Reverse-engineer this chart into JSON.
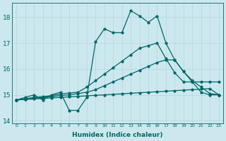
{
  "xlabel": "Humidex (Indice chaleur)",
  "background_color": "#cce8ee",
  "grid_color": "#b8d8e0",
  "line_color": "#006666",
  "xlim": [
    -0.5,
    23.5
  ],
  "ylim": [
    13.9,
    18.55
  ],
  "yticks": [
    14,
    15,
    16,
    17,
    18
  ],
  "xticks": [
    0,
    1,
    2,
    3,
    4,
    5,
    6,
    7,
    8,
    9,
    10,
    11,
    12,
    13,
    14,
    15,
    16,
    17,
    18,
    19,
    20,
    21,
    22,
    23
  ],
  "series1_y": [
    14.8,
    14.9,
    15.0,
    14.8,
    15.0,
    15.1,
    14.4,
    14.4,
    14.9,
    17.05,
    17.55,
    17.4,
    17.4,
    18.25,
    18.05,
    17.8,
    18.05,
    17.0,
    16.35,
    15.9,
    15.5,
    15.1,
    15.0,
    15.0
  ],
  "series2_y": [
    14.8,
    14.85,
    14.9,
    14.93,
    14.97,
    15.03,
    15.07,
    15.1,
    15.3,
    15.55,
    15.8,
    16.05,
    16.3,
    16.55,
    16.8,
    16.9,
    17.0,
    16.4,
    15.85,
    15.5,
    15.5,
    15.5,
    15.5,
    15.5
  ],
  "series3_y": [
    14.8,
    14.83,
    14.87,
    14.9,
    14.93,
    14.97,
    15.0,
    15.05,
    15.1,
    15.2,
    15.35,
    15.5,
    15.65,
    15.8,
    15.95,
    16.1,
    16.25,
    16.35,
    16.35,
    15.9,
    15.55,
    15.3,
    15.05,
    15.0
  ],
  "series4_y": [
    14.8,
    14.82,
    14.84,
    14.86,
    14.88,
    14.9,
    14.92,
    14.94,
    14.96,
    14.98,
    15.0,
    15.02,
    15.04,
    15.06,
    15.08,
    15.1,
    15.12,
    15.14,
    15.16,
    15.18,
    15.2,
    15.22,
    15.24,
    15.0
  ],
  "marker_size": 2.0,
  "linewidth": 0.9
}
